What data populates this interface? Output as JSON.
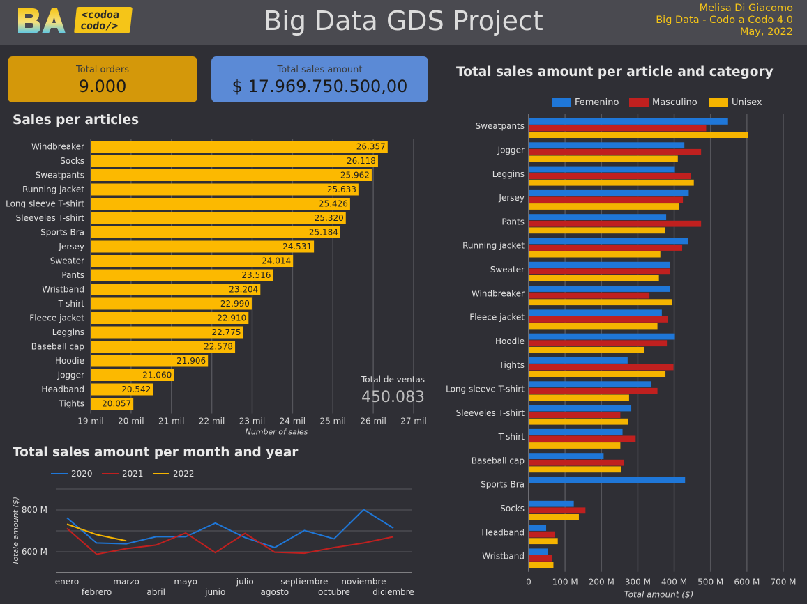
{
  "header": {
    "title": "Big Data GDS Project",
    "author_lines": [
      "Melisa Di Giacomo",
      "Big Data - Codo a Codo 4.0",
      "May, 2022"
    ],
    "logo_text": [
      "<codoa",
      "codo/>"
    ]
  },
  "kpi": {
    "orders": {
      "label": "Total orders",
      "value": "9.000",
      "color": "#d4980a"
    },
    "sales": {
      "label": "Total sales amount",
      "value": "$ 17.969.750.500,00",
      "color": "#5b8ad6"
    }
  },
  "colors": {
    "yellow": "#fcb900",
    "blue": "#1f77d8",
    "red": "#c0201f",
    "orange": "#f5b400"
  },
  "chart_data": [
    {
      "type": "bar",
      "orientation": "horizontal",
      "title": "Sales per articles",
      "xlabel": "Number of sales",
      "categories": [
        "Windbreaker",
        "Socks",
        "Sweatpants",
        "Running jacket",
        "Long sleeve T-shirt",
        "Sleeveles T-shirt",
        "Sports Bra",
        "Jersey",
        "Sweater",
        "Pants",
        "Wristband",
        "T-shirt",
        "Fleece jacket",
        "Leggins",
        "Baseball cap",
        "Hoodie",
        "Jogger",
        "Headband",
        "Tights"
      ],
      "values": [
        26357,
        26118,
        25962,
        25633,
        25426,
        25320,
        25184,
        24531,
        24014,
        23516,
        23204,
        22990,
        22910,
        22775,
        22578,
        21906,
        21060,
        20542,
        20057
      ],
      "value_labels": [
        "26.357",
        "26.118",
        "25.962",
        "25.633",
        "25.426",
        "25.320",
        "25.184",
        "24.531",
        "24.014",
        "23.516",
        "23.204",
        "22.990",
        "22.910",
        "22.775",
        "22.578",
        "21.906",
        "21.060",
        "20.542",
        "20.057"
      ],
      "xlim": [
        19000,
        27000
      ],
      "xticks": [
        19000,
        20000,
        21000,
        22000,
        23000,
        24000,
        25000,
        26000,
        27000
      ],
      "xtick_labels": [
        "19 mil",
        "20 mil",
        "21 mil",
        "22 mil",
        "23 mil",
        "24 mil",
        "25 mil",
        "26 mil",
        "27 mil"
      ],
      "grid": true,
      "annotation": {
        "label": "Total de ventas",
        "value": "450.083"
      }
    },
    {
      "type": "line",
      "title": "Total sales amount per month and year",
      "ylabel": "Totale amount ($)",
      "x": [
        "enero",
        "febrero",
        "marzo",
        "abril",
        "mayo",
        "junio",
        "julio",
        "agosto",
        "septiembre",
        "octubre",
        "noviembre",
        "diciembre"
      ],
      "series": [
        {
          "name": "2020",
          "color": "#1f77d8",
          "values": [
            762,
            642,
            638,
            672,
            672,
            737,
            668,
            620,
            702,
            662,
            802,
            713
          ]
        },
        {
          "name": "2021",
          "color": "#c0201f",
          "values": [
            712,
            588,
            615,
            632,
            690,
            596,
            688,
            598,
            593,
            620,
            642,
            672
          ]
        },
        {
          "name": "2022",
          "color": "#f5b400",
          "values": [
            732,
            682,
            652,
            null,
            null,
            null,
            null,
            null,
            null,
            null,
            null,
            null
          ]
        }
      ],
      "ylim": [
        500,
        900
      ],
      "yticks": [
        600,
        800
      ],
      "ytick_labels": [
        "600 M",
        "800 M"
      ],
      "grid": true,
      "legend": "top-left"
    },
    {
      "type": "bar",
      "orientation": "horizontal",
      "grouped": true,
      "title": "Total sales amount per article and category",
      "xlabel": "Total amount ($)",
      "legend": "top",
      "categories": [
        "Sweatpants",
        "Jogger",
        "Leggins",
        "Jersey",
        "Pants",
        "Running jacket",
        "Sweater",
        "Windbreaker",
        "Fleece jacket",
        "Hoodie",
        "Tights",
        "Long sleeve T-shirt",
        "Sleeveles T-shirt",
        "T-shirt",
        "Baseball cap",
        "Sports Bra",
        "Socks",
        "Headband",
        "Wristband"
      ],
      "series": [
        {
          "name": "Femenino",
          "color": "#1f77d8",
          "values": [
            548,
            428,
            402,
            440,
            378,
            438,
            388,
            388,
            366,
            402,
            272,
            336,
            282,
            258,
            206,
            430,
            124,
            48,
            52
          ]
        },
        {
          "name": "Masculino",
          "color": "#c0201f",
          "values": [
            488,
            474,
            446,
            424,
            474,
            422,
            388,
            332,
            382,
            380,
            398,
            354,
            252,
            294,
            262,
            null,
            156,
            72,
            64
          ]
        },
        {
          "name": "Unisex",
          "color": "#f5b400",
          "values": [
            604,
            410,
            454,
            414,
            374,
            362,
            358,
            394,
            354,
            318,
            376,
            276,
            274,
            252,
            254,
            null,
            138,
            80,
            68
          ]
        }
      ],
      "xlim": [
        0,
        700
      ],
      "xticks": [
        0,
        100,
        200,
        300,
        400,
        500,
        600,
        700
      ],
      "xtick_labels": [
        "0",
        "100 M",
        "200 M",
        "300 M",
        "400 M",
        "500 M",
        "600 M",
        "700 M"
      ],
      "grid": true
    }
  ]
}
